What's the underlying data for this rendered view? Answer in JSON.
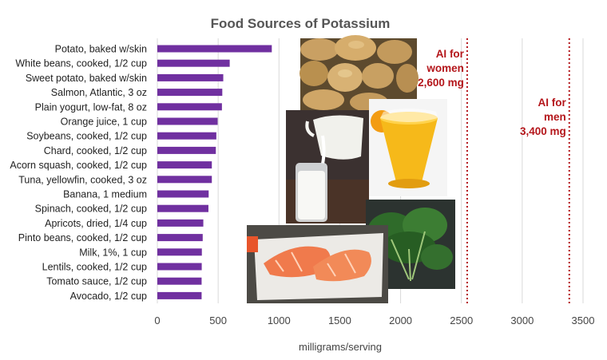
{
  "chart_data": {
    "type": "bar",
    "orientation": "horizontal",
    "title": "Food Sources of Potassium",
    "xlabel": "milligrams/serving",
    "ylabel": "",
    "xlim": [
      0,
      3500
    ],
    "xticks": [
      0,
      500,
      1000,
      1500,
      2000,
      2500,
      3000,
      3500
    ],
    "grid": true,
    "categories": [
      "Potato, baked w/skin",
      "White beans, cooked, 1/2 cup",
      "Sweet potato, baked w/skin",
      "Salmon, Atlantic, 3 oz",
      "Plain yogurt, low-fat, 8 oz",
      "Orange juice, 1 cup",
      "Soybeans, cooked, 1/2 cup",
      "Chard, cooked, 1/2 cup",
      "Acorn squash, cooked, 1/2 cup",
      "Tuna, yellowfin, cooked, 3 oz",
      "Banana, 1 medium",
      "Spinach, cooked, 1/2 cup",
      "Apricots, dried, 1/4 cup",
      "Pinto beans, cooked, 1/2 cup",
      "Milk, 1%, 1 cup",
      "Lentils, cooked, 1/2 cup",
      "Tomato sauce, 1/2 cup",
      "Avocado, 1/2 cup"
    ],
    "values": [
      941,
      595,
      542,
      534,
      531,
      496,
      485,
      481,
      448,
      448,
      422,
      420,
      378,
      373,
      366,
      365,
      364,
      364
    ],
    "bar_color": "#7030a0",
    "reference_lines": [
      {
        "value": 2600,
        "label_lines": [
          "AI for",
          "women",
          "2,600 mg"
        ],
        "color": "#b4161b"
      },
      {
        "value": 3400,
        "label_lines": [
          "AI for",
          "men",
          "3,400 mg"
        ],
        "color": "#b4161b"
      }
    ]
  },
  "photos": [
    "potatoes-photo",
    "orange-juice-photo",
    "milk-photo",
    "salmon-photo",
    "spinach-photo"
  ]
}
